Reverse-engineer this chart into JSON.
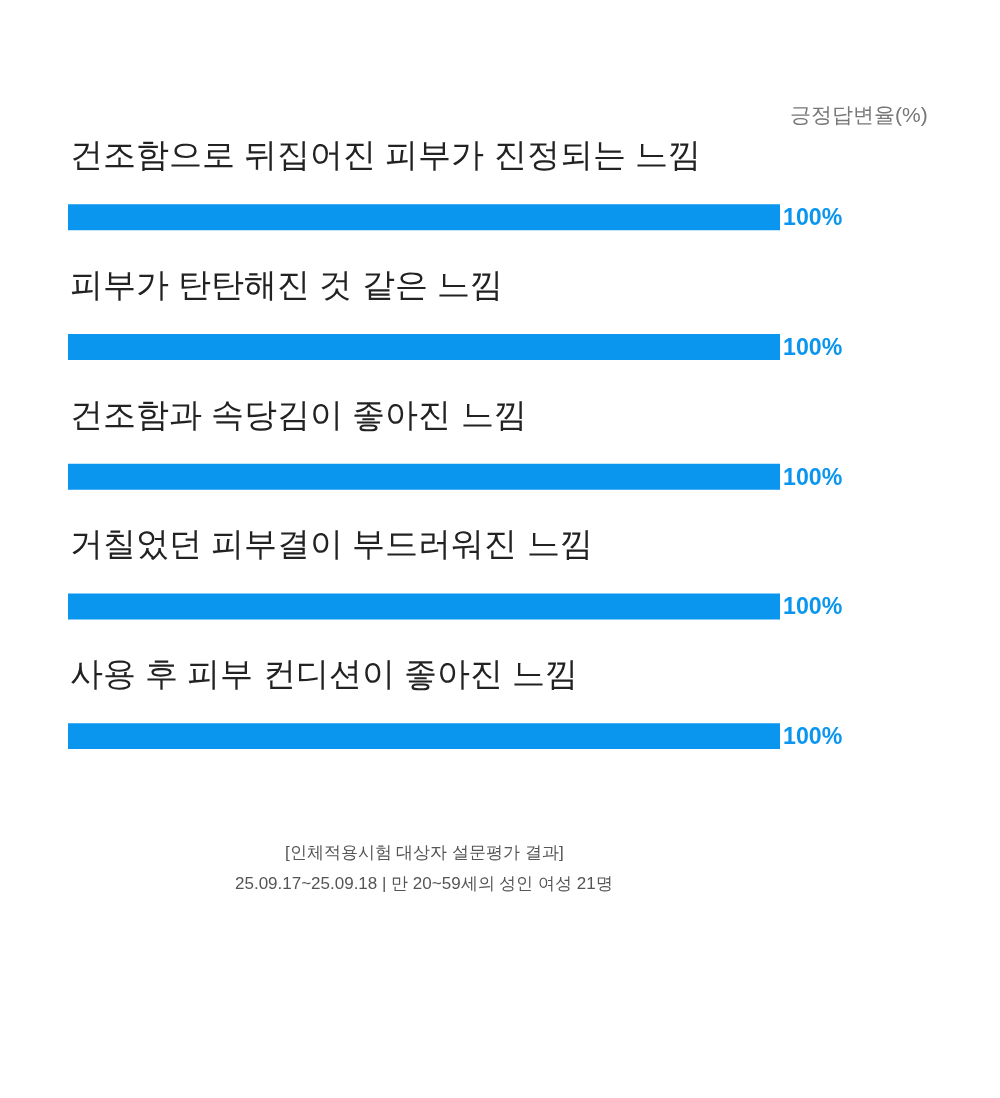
{
  "chart_data": {
    "type": "bar",
    "orientation": "horizontal",
    "xlabel": "긍정답변율(%)",
    "categories": [
      "건조함으로 뒤집어진 피부가 진정되는 느낌",
      "피부가 탄탄해진 것 같은 느낌",
      "건조함과 속당김이 좋아진 느낌",
      "거칠었던 피부결이 부드러워진 느낌",
      "사용 후 피부 컨디션이 좋아진 느낌"
    ],
    "values": [
      100,
      100,
      100,
      100,
      100
    ],
    "value_labels": [
      "100%",
      "100%",
      "100%",
      "100%",
      "100%"
    ],
    "color": "#0a96ef",
    "annotations": [
      "[인체적용시험 대상자 설문평가 결과]",
      "25.09.17~25.09.18 | 만 20~59세의 성인 여성 21명"
    ],
    "legend": false
  }
}
